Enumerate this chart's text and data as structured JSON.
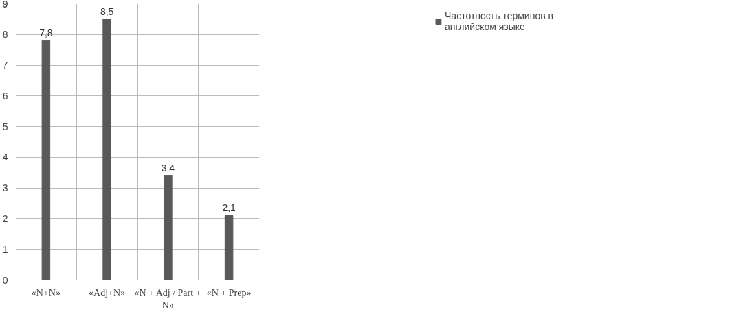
{
  "chart_data": {
    "type": "bar",
    "categories": [
      "«N+N»",
      "«Adj+N»",
      "«N + Adj / Part + N»",
      "«N + Prep»"
    ],
    "series": [
      {
        "name": "Частотность терминов в английском языке",
        "color": "#595959",
        "values": [
          7.8,
          8.5,
          3.4,
          2.1
        ],
        "value_labels": [
          "7,8",
          "8,5",
          "3,4",
          "2,1"
        ]
      }
    ],
    "ylim": [
      0,
      9
    ],
    "yticks": [
      0,
      1,
      2,
      3,
      4,
      5,
      6,
      7,
      8,
      9
    ],
    "grid": true,
    "legend": "right"
  }
}
